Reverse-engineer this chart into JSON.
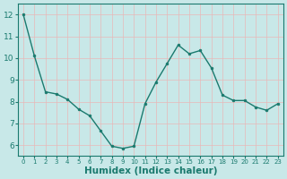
{
  "x": [
    0,
    1,
    2,
    3,
    4,
    5,
    6,
    7,
    8,
    9,
    10,
    11,
    12,
    13,
    14,
    15,
    16,
    17,
    18,
    19,
    20,
    21,
    22,
    23
  ],
  "y": [
    12.0,
    10.1,
    8.45,
    8.35,
    8.1,
    7.65,
    7.35,
    6.65,
    5.95,
    5.85,
    5.95,
    7.9,
    8.9,
    9.75,
    10.6,
    10.2,
    10.35,
    9.55,
    8.3,
    8.05,
    8.05,
    7.75,
    7.6,
    7.9
  ],
  "line_color": "#1a7a6e",
  "marker": "o",
  "marker_size": 2.0,
  "bg_color": "#c8e8e8",
  "grid_color": "#e8b8b8",
  "tick_color": "#1a7a6e",
  "xlabel": "Humidex (Indice chaleur)",
  "ylim": [
    5.5,
    12.5
  ],
  "xlim": [
    -0.5,
    23.5
  ],
  "yticks": [
    6,
    7,
    8,
    9,
    10,
    11,
    12
  ],
  "xticks": [
    0,
    1,
    2,
    3,
    4,
    5,
    6,
    7,
    8,
    9,
    10,
    11,
    12,
    13,
    14,
    15,
    16,
    17,
    18,
    19,
    20,
    21,
    22,
    23
  ],
  "font_color": "#1a7a6e",
  "xlabel_fontsize": 7.5,
  "tick_fontsize": 6.5,
  "linewidth": 1.0
}
